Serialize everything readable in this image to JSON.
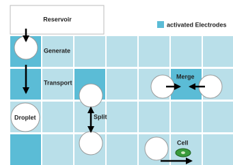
{
  "reservoir": "Reservoir",
  "legend": "activated Electrodes",
  "labels": {
    "generate": "Generate",
    "transport": "Transport",
    "droplet": "Droplet",
    "split": "Split",
    "merge": "Merge",
    "cell": "Cell"
  }
}
